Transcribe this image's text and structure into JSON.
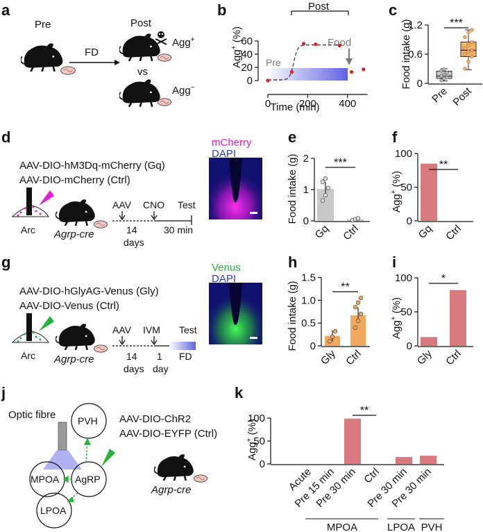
{
  "panel_labels": {
    "a": "a",
    "b": "b",
    "c": "c",
    "d": "d",
    "e": "e",
    "f": "f",
    "g": "g",
    "h": "h",
    "i": "i",
    "j": "j",
    "k": "k"
  },
  "agg_ylabel": {
    "main": "Agg",
    "sup": "+",
    "unit": " (%)"
  },
  "panel_a": {
    "pre": "Pre",
    "post": "Post",
    "fd": "FD",
    "vs": "vs",
    "agg_pos": "Agg",
    "agg_pos_sup": "+",
    "agg_neg": "Agg",
    "agg_neg_sup": "−"
  },
  "panel_b": {
    "post_label": "Post",
    "pre_label": "Pre",
    "food_label": "Food",
    "xlabel": "Time (min)"
  },
  "panel_c": {
    "ylabel": "Food intake (g)",
    "sig": "***"
  },
  "panel_d": {
    "line1": "AAV-DIO-hM3Dq-mCherry (Gq)",
    "line2": "AAV-DIO-mCherry (Ctrl)",
    "region": "Arc",
    "mouse": "Agrp-cre",
    "timeline": {
      "aav": "AAV",
      "cno": "CNO",
      "test": "Test",
      "days": "14",
      "days_unit": "days",
      "minutes": "30 min"
    },
    "image_labels": {
      "a": "mCherry",
      "b": "DAPI"
    }
  },
  "panel_e": {
    "ylabel": "Food intake (g)",
    "sig": "***"
  },
  "panel_f": {
    "sig": "**"
  },
  "panel_g": {
    "line1": "AAV-DIO-hGlyAG-Venus (Gly)",
    "line2": "AAV-DIO-Venus (Ctrl)",
    "region": "Arc",
    "mouse": "Agrp-cre",
    "timeline": {
      "aav": "AAV",
      "ivm": "IVM",
      "test": "Test",
      "days": "14",
      "days_unit": "days",
      "one": "1",
      "day_unit": "day",
      "fd": "FD"
    },
    "image_labels": {
      "a": "Venus",
      "b": "DAPI"
    }
  },
  "panel_h": {
    "ylabel": "Food intake (g)",
    "sig": "**"
  },
  "panel_i": {
    "sig": "*"
  },
  "panel_j": {
    "optic": "Optic fibre",
    "pvh": "PVH",
    "mpoa": "MPOA",
    "agrp": "AgRP",
    "lpoa": "LPOA",
    "line1": "AAV-DIO-ChR2",
    "line2": "AAV-DIO-EYFP (Ctrl)",
    "mouse": "Agrp-cre"
  },
  "panel_k": {
    "sig": "**",
    "groups": [
      "MPOA",
      "LPOA",
      "PVH"
    ]
  },
  "colors": {
    "bar_red": "#d9787e",
    "bar_gray": "#c8c8c8",
    "bar_orange": "#f1a85c",
    "post_box": "#f3b266",
    "dot_red": "#d9252a",
    "shade_blue": "#6b6ee0",
    "magenta": "#e020d0",
    "green": "#26b43b",
    "dark": "#111111"
  },
  "chart_data": [
    {
      "id": "b",
      "type": "line",
      "xlabel": "Time (min)",
      "ylabel": "Agg+ (%)",
      "xticks": [
        0,
        200,
        400
      ],
      "yticks": [
        0,
        20,
        40,
        60
      ],
      "xlim": [
        -15,
        500
      ],
      "ylim": [
        -3,
        62
      ],
      "points": [
        {
          "x": 0,
          "y": 0
        },
        {
          "x": 120,
          "y": 13
        },
        {
          "x": 180,
          "y": 56
        },
        {
          "x": 240,
          "y": 55
        },
        {
          "x": 360,
          "y": 53
        },
        {
          "x": 420,
          "y": 13
        },
        {
          "x": 480,
          "y": 17
        }
      ]
    },
    {
      "id": "c",
      "type": "box",
      "ylabel": "Food intake (g)",
      "categories": [
        "Pre",
        "Post"
      ],
      "yticks": [
        0,
        0.6,
        1.2
      ],
      "ylim": [
        0,
        1.3
      ],
      "boxes": [
        {
          "name": "Pre",
          "min": 0.05,
          "q1": 0.1,
          "median": 0.15,
          "q3": 0.25,
          "max": 0.3
        },
        {
          "name": "Post",
          "min": 0.28,
          "q1": 0.55,
          "median": 0.68,
          "q3": 0.85,
          "max": 1.1
        }
      ]
    },
    {
      "id": "e",
      "type": "bar",
      "ylabel": "Food intake (g)",
      "categories": [
        "Gq",
        "Ctrl"
      ],
      "values": [
        1.02,
        0.05
      ],
      "errors": [
        0.22,
        0.04
      ],
      "yticks": [
        0,
        1,
        2
      ],
      "ylim": [
        0,
        2
      ]
    },
    {
      "id": "f",
      "type": "bar",
      "ylabel": "Agg+ (%)",
      "categories": [
        "Gq",
        "Ctrl"
      ],
      "values": [
        85,
        0
      ],
      "yticks": [
        0,
        50,
        100
      ],
      "ylim": [
        0,
        100
      ]
    },
    {
      "id": "h",
      "type": "bar",
      "ylabel": "Food intake (g)",
      "categories": [
        "Gly",
        "Ctrl"
      ],
      "values": [
        0.22,
        0.67
      ],
      "errors": [
        0.12,
        0.17
      ],
      "yticks": [
        0,
        0.5,
        1.0,
        1.5
      ],
      "yticklabels": [
        "0",
        "0.5",
        "1.0",
        "1.5"
      ],
      "ylim": [
        0,
        1.6
      ]
    },
    {
      "id": "i",
      "type": "bar",
      "ylabel": "Agg+ (%)",
      "categories": [
        "Gly",
        "Ctrl"
      ],
      "values": [
        13,
        82
      ],
      "yticks": [
        0,
        50,
        100
      ],
      "ylim": [
        0,
        100
      ]
    },
    {
      "id": "k",
      "type": "bar",
      "ylabel": "Agg+ (%)",
      "categories": [
        "Acute",
        "Pre 15 min",
        "Pre 30 min",
        "Ctrl",
        "Pre 30 min",
        "Pre 30 min"
      ],
      "values": [
        0,
        0,
        99,
        0,
        15,
        18
      ],
      "yticks": [
        0,
        50,
        100
      ],
      "ylim": [
        0,
        100
      ]
    }
  ]
}
